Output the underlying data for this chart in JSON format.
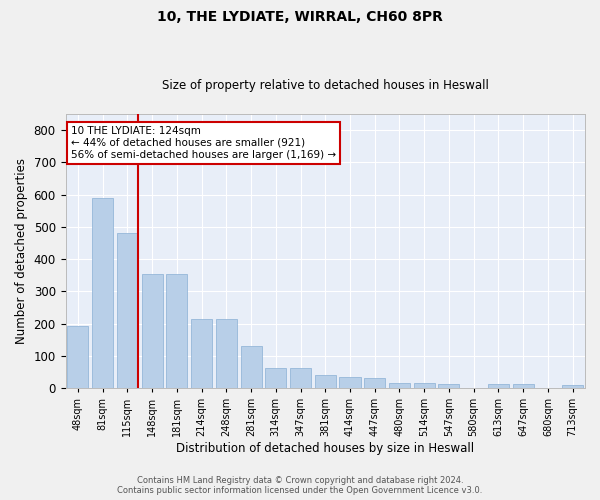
{
  "title_line1": "10, THE LYDIATE, WIRRAL, CH60 8PR",
  "title_line2": "Size of property relative to detached houses in Heswall",
  "xlabel": "Distribution of detached houses by size in Heswall",
  "ylabel": "Number of detached properties",
  "categories": [
    "48sqm",
    "81sqm",
    "115sqm",
    "148sqm",
    "181sqm",
    "214sqm",
    "248sqm",
    "281sqm",
    "314sqm",
    "347sqm",
    "381sqm",
    "414sqm",
    "447sqm",
    "480sqm",
    "514sqm",
    "547sqm",
    "580sqm",
    "613sqm",
    "647sqm",
    "680sqm",
    "713sqm"
  ],
  "values": [
    192,
    588,
    481,
    353,
    353,
    214,
    214,
    130,
    63,
    63,
    40,
    34,
    32,
    16,
    16,
    11,
    0,
    11,
    11,
    0,
    9
  ],
  "bar_color": "#b8cfe8",
  "bar_edge_color": "#8aafd4",
  "background_color": "#e8eef8",
  "grid_color": "#ffffff",
  "annotation_line1": "10 THE LYDIATE: 124sqm",
  "annotation_line2": "← 44% of detached houses are smaller (921)",
  "annotation_line3": "56% of semi-detached houses are larger (1,169) →",
  "vline_color": "#cc0000",
  "vline_x": 2.425,
  "ylim": [
    0,
    850
  ],
  "yticks": [
    0,
    100,
    200,
    300,
    400,
    500,
    600,
    700,
    800
  ],
  "footer_line1": "Contains HM Land Registry data © Crown copyright and database right 2024.",
  "footer_line2": "Contains public sector information licensed under the Open Government Licence v3.0.",
  "fig_bg": "#f0f0f0"
}
